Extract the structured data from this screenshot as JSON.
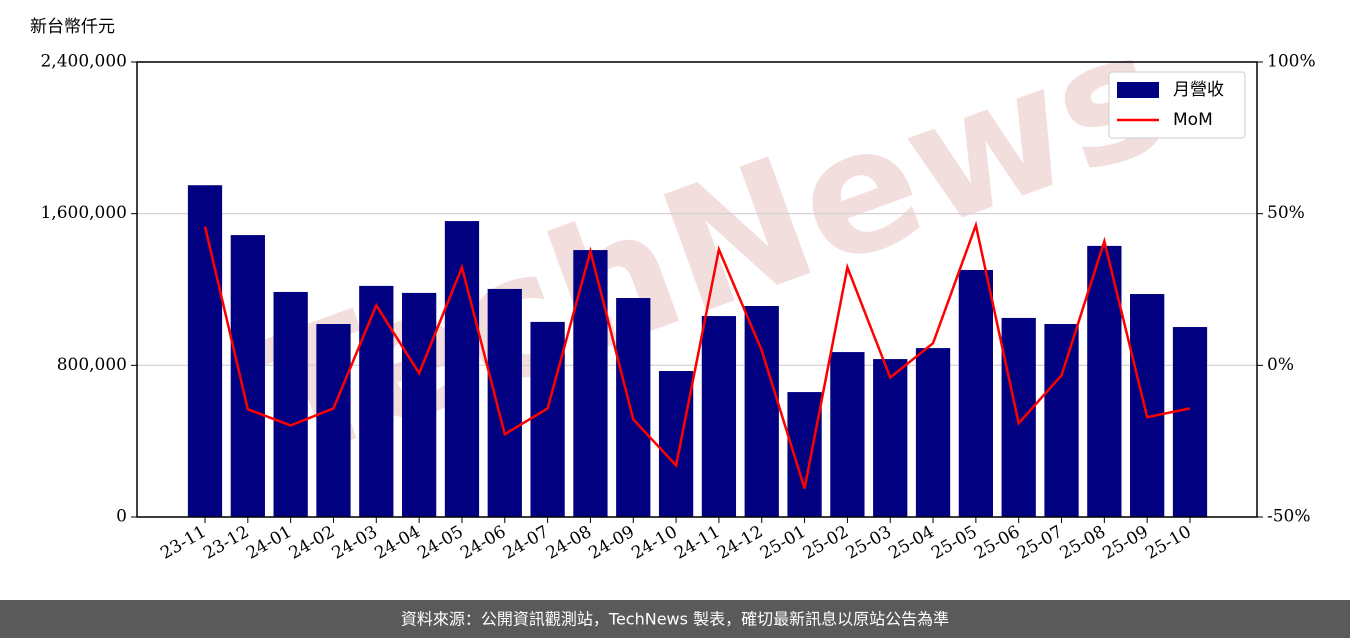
{
  "chart_data": {
    "type": "bar-line",
    "y_unit_label": "新台幣仟元",
    "watermark": "TechNews",
    "source": "資料來源：公開資訊觀測站，TechNews 製表，確切最新訊息以原站公告為準",
    "categories": [
      "23-11",
      "23-12",
      "24-01",
      "24-02",
      "24-03",
      "24-04",
      "24-05",
      "24-06",
      "24-07",
      "24-08",
      "24-09",
      "24-10",
      "24-11",
      "24-12",
      "25-01",
      "25-02",
      "25-03",
      "25-04",
      "25-05",
      "25-06",
      "25-07",
      "25-08",
      "25-09",
      "25-10"
    ],
    "series": [
      {
        "name": "月營收",
        "color": "#000080",
        "values": [
          1750000,
          1487000,
          1187000,
          1018000,
          1219000,
          1182000,
          1561000,
          1203000,
          1029000,
          1408000,
          1155000,
          770000,
          1060000,
          1113000,
          659000,
          870000,
          833000,
          891000,
          1303000,
          1050000,
          1018000,
          1430000,
          1176000,
          1002000
        ]
      },
      {
        "name": "MoM",
        "color": "#ff0000",
        "axis": "y2",
        "values": [
          45.8,
          -14.5,
          -19.8,
          -14.2,
          19.8,
          -2.6,
          32.3,
          -22.7,
          -14.2,
          37.6,
          -17.8,
          -33,
          38.2,
          4.9,
          -40.6,
          32.3,
          -4,
          7.3,
          46.2,
          -19.1,
          -3.3,
          40.9,
          -17.1,
          -14.2
        ]
      }
    ],
    "ylim": [
      0,
      2400000
    ],
    "yticks": [
      0,
      {
        "value": 800000,
        "label": "800,000"
      },
      {
        "value": 1600000,
        "label": "1,600,000"
      },
      {
        "value": 2400000,
        "label": "2,400,000"
      }
    ],
    "y2lim": [
      -50,
      100
    ],
    "y2ticks": [
      {
        "value": -50,
        "label": "-50%"
      },
      {
        "value": 0,
        "label": "0%"
      },
      {
        "value": 50,
        "label": "50%"
      },
      {
        "value": 100,
        "label": "100%"
      }
    ],
    "grid": true,
    "legend": "upper right"
  }
}
